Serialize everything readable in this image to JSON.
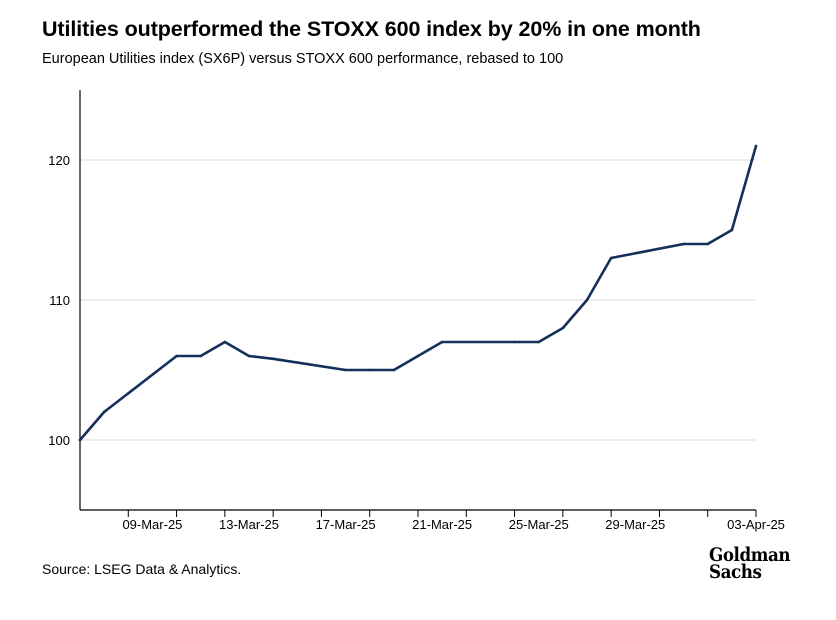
{
  "header": {
    "title": "Utilities outperformed the STOXX 600 index by 20% in one month",
    "subtitle": "European Utilities index (SX6P) versus STOXX 600 performance, rebased to 100"
  },
  "footer": {
    "source": "Source: LSEG Data & Analytics.",
    "logo_line1": "Goldman",
    "logo_line2": "Sachs"
  },
  "colors": {
    "line": "#14305a",
    "grid": "#d9d9d9",
    "axis": "#000000"
  },
  "chart_data": {
    "type": "line",
    "title": "Utilities outperformed the STOXX 600 index by 20% in one month",
    "subtitle": "European Utilities index (SX6P) versus STOXX 600 performance, rebased to 100",
    "xlabel": "",
    "ylabel": "",
    "ylim": [
      95,
      125
    ],
    "yticks": [
      100,
      110,
      120
    ],
    "grid": "horizontal",
    "xticks": [
      "09-Mar-25",
      "13-Mar-25",
      "17-Mar-25",
      "21-Mar-25",
      "25-Mar-25",
      "29-Mar-25",
      "03-Apr-25"
    ],
    "x": [
      "06-Mar-25",
      "07-Mar-25",
      "10-Mar-25",
      "11-Mar-25",
      "12-Mar-25",
      "13-Mar-25",
      "14-Mar-25",
      "17-Mar-25",
      "18-Mar-25",
      "19-Mar-25",
      "20-Mar-25",
      "21-Mar-25",
      "24-Mar-25",
      "25-Mar-25",
      "26-Mar-25",
      "27-Mar-25",
      "28-Mar-25",
      "31-Mar-25",
      "01-Apr-25",
      "02-Apr-25",
      "03-Apr-25"
    ],
    "series": [
      {
        "values": [
          100,
          102,
          106,
          106,
          107,
          106,
          105.8,
          105,
          105,
          105,
          106,
          107,
          107,
          107,
          108,
          110,
          113,
          114,
          114,
          115,
          121
        ]
      }
    ]
  }
}
